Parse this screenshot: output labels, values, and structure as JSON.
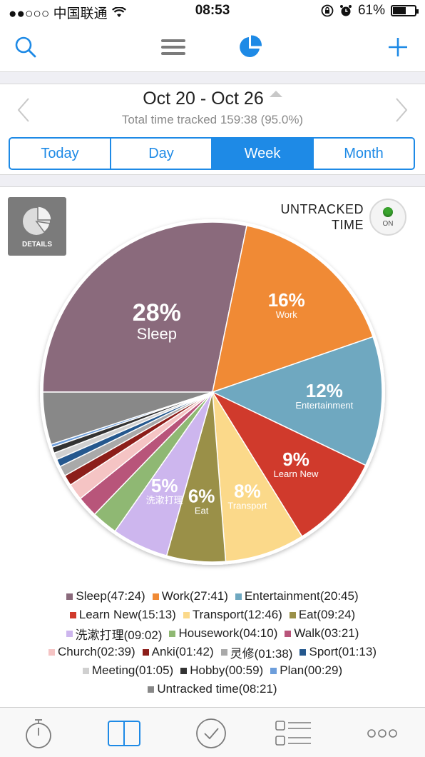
{
  "status_bar": {
    "carrier": "●●○○○ 中国联通",
    "time": "08:53",
    "battery": "61%",
    "battery_level": 0.61
  },
  "toolbar": {
    "search_icon": "search-icon",
    "menu_icon": "hamburger-menu-icon",
    "chart_icon": "pie-chart-icon",
    "add_icon": "plus-icon",
    "accent": "#1e8ae6"
  },
  "period": {
    "title": "Oct 20 - Oct 26",
    "subtitle": "Total time tracked 159:38 (95.0%)",
    "tabs": [
      {
        "label": "Today",
        "active": false
      },
      {
        "label": "Day",
        "active": false
      },
      {
        "label": "Week",
        "active": true
      },
      {
        "label": "Month",
        "active": false
      }
    ]
  },
  "chart_panel": {
    "details_label": "DETAILS",
    "untracked_line1": "UNTRACKED",
    "untracked_line2": "TIME",
    "toggle_label": "ON"
  },
  "chart_data": {
    "type": "pie",
    "start_angle_deg": 180,
    "direction": "counterclockwise",
    "slices": [
      {
        "name": "Sleep",
        "legend": "Sleep(47:24)",
        "value": 47.4,
        "pct_label": "28%",
        "color": "#8a6a7c"
      },
      {
        "name": "Work",
        "legend": "Work(27:41)",
        "value": 27.683,
        "pct_label": "16%",
        "color": "#f08a35"
      },
      {
        "name": "Entertainment",
        "legend": "Entertainment(20:45)",
        "value": 20.75,
        "pct_label": "12%",
        "color": "#6fa8c0"
      },
      {
        "name": "Learn New",
        "legend": "Learn New(15:13)",
        "value": 15.217,
        "pct_label": "9%",
        "color": "#d03a2c"
      },
      {
        "name": "Transport",
        "legend": "Transport(12:46)",
        "value": 12.767,
        "pct_label": "8%",
        "color": "#fbd98a"
      },
      {
        "name": "Eat",
        "legend": "Eat(09:24)",
        "value": 9.4,
        "pct_label": "6%",
        "color": "#9a9048"
      },
      {
        "name": "洗漱打理",
        "legend": "洗漱打理(09:02)",
        "value": 9.033,
        "pct_label": "5%",
        "color": "#cdb6ee"
      },
      {
        "name": "Housework",
        "legend": "Housework(04:10)",
        "value": 4.167,
        "color": "#8fb873"
      },
      {
        "name": "Walk",
        "legend": "Walk(03:21)",
        "value": 3.35,
        "color": "#b8557a"
      },
      {
        "name": "Church",
        "legend": "Church(02:39)",
        "value": 2.65,
        "color": "#f5c4c4"
      },
      {
        "name": "Anki",
        "legend": "Anki(01:42)",
        "value": 1.7,
        "color": "#8c1e1a"
      },
      {
        "name": "灵修",
        "legend": "灵修(01:38)",
        "value": 1.633,
        "color": "#a9a9a9"
      },
      {
        "name": "Sport",
        "legend": "Sport(01:13)",
        "value": 1.217,
        "color": "#25588e"
      },
      {
        "name": "Meeting",
        "legend": "Meeting(01:05)",
        "value": 1.083,
        "color": "#d0d0d0"
      },
      {
        "name": "Hobby",
        "legend": "Hobby(00:59)",
        "value": 0.983,
        "color": "#333333"
      },
      {
        "name": "Plan",
        "legend": "Plan(00:29)",
        "value": 0.483,
        "color": "#6d9edb"
      },
      {
        "name": "Untracked time",
        "legend": "Untracked time(08:21)",
        "value": 8.35,
        "color": "#888888"
      }
    ],
    "legend_rows": [
      [
        0,
        1,
        2
      ],
      [
        3,
        4,
        5
      ],
      [
        6,
        7,
        8
      ],
      [
        9,
        10,
        11,
        12
      ],
      [
        13,
        14,
        15
      ],
      [
        16
      ]
    ]
  },
  "tabbar": {
    "items": [
      {
        "icon": "stopwatch-icon",
        "active": false
      },
      {
        "icon": "book-icon",
        "active": true
      },
      {
        "icon": "checkmark-circle-icon",
        "active": false
      },
      {
        "icon": "list-icon",
        "active": false
      },
      {
        "icon": "more-icon",
        "active": false
      }
    ]
  }
}
